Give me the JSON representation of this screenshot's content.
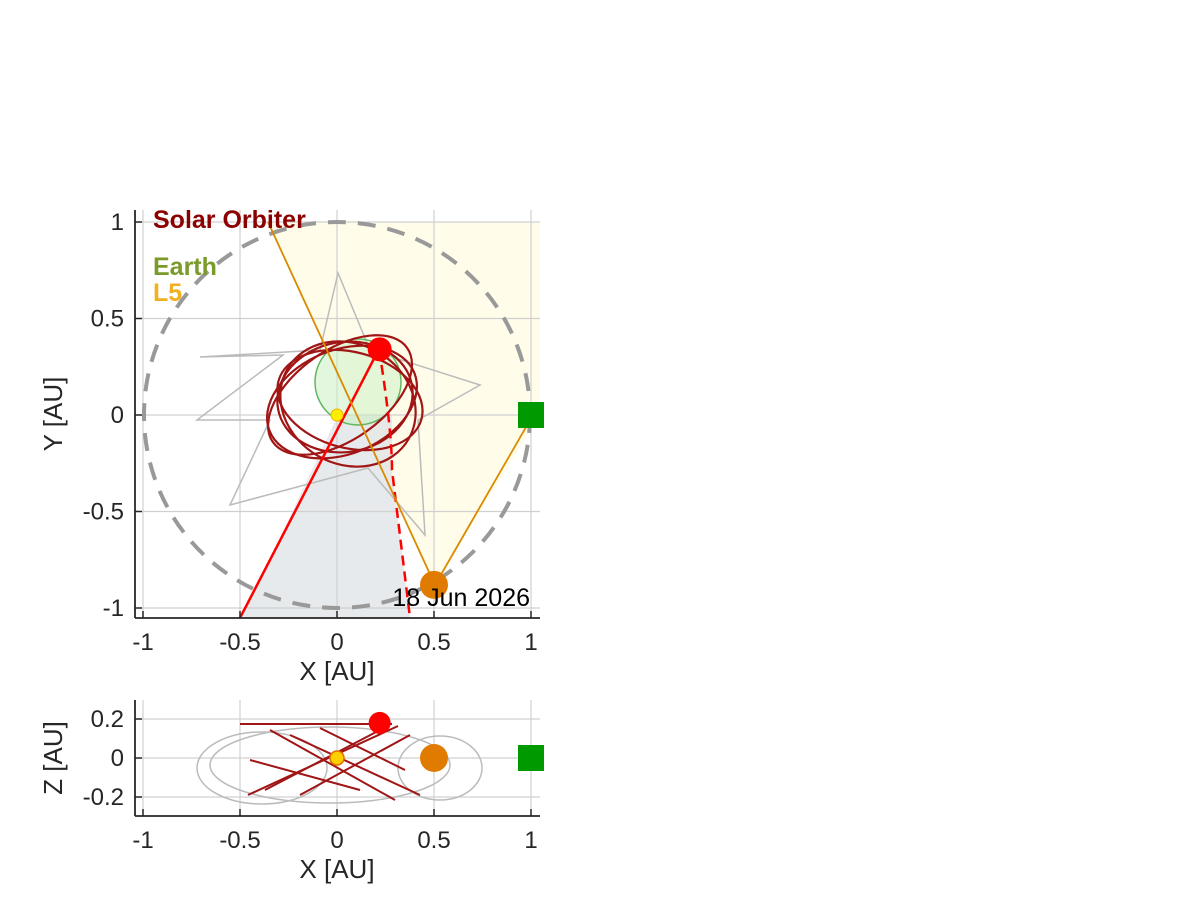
{
  "chart_data": [
    {
      "type": "scatter",
      "panel": "top view",
      "xlabel": "X [AU]",
      "ylabel": "Y [AU]",
      "xlim": [
        -1.05,
        1.05
      ],
      "ylim": [
        -1.05,
        1.05
      ],
      "xticks": [
        -1,
        -0.5,
        0,
        0.5,
        1
      ],
      "xtick_labels": [
        "-1",
        "-0.5",
        "0",
        "0.5",
        "1"
      ],
      "yticks": [
        -1,
        -0.5,
        0,
        0.5,
        1
      ],
      "ytick_labels": [
        "-1",
        "-0.5",
        "0",
        "0.5",
        "1"
      ],
      "grid": true,
      "date": "18 Jun 2026",
      "legend": {
        "position": "top-left",
        "entries": [
          {
            "label": "Solar Orbiter",
            "color": "#8b0000"
          },
          {
            "label": "Earth",
            "color": "#7a9a2a"
          },
          {
            "label": "L5",
            "color": "#f0b020"
          }
        ]
      },
      "objects": {
        "sun": {
          "x": 0.0,
          "y": 0.0
        },
        "solar_orbiter": {
          "x": 0.22,
          "y": 0.34,
          "color": "#ff0000"
        },
        "l5": {
          "x": 0.5,
          "y": -0.88,
          "color": "#e07b00"
        },
        "earth": {
          "x": 1.0,
          "y": 0.0,
          "color": "#009900"
        }
      },
      "earth_orbit_radius": 1.0
    },
    {
      "type": "scatter",
      "panel": "side view",
      "xlabel": "X [AU]",
      "ylabel": "Z [AU]",
      "xlim": [
        -1.05,
        1.05
      ],
      "ylim": [
        -0.3,
        0.3
      ],
      "xticks": [
        -1,
        -0.5,
        0,
        0.5,
        1
      ],
      "xtick_labels": [
        "-1",
        "-0.5",
        "0",
        "0.5",
        "1"
      ],
      "yticks": [
        -0.2,
        0,
        0.2
      ],
      "ytick_labels": [
        "-0.2",
        "0",
        "0.2"
      ],
      "grid": true,
      "objects": {
        "sun": {
          "x": 0.0,
          "z": 0.0
        },
        "solar_orbiter": {
          "x": 0.22,
          "z": 0.18,
          "color": "#ff0000"
        },
        "l5": {
          "x": 0.5,
          "z": 0.0,
          "color": "#e07b00"
        },
        "earth": {
          "x": 1.0,
          "z": 0.0,
          "color": "#009900"
        }
      }
    }
  ]
}
